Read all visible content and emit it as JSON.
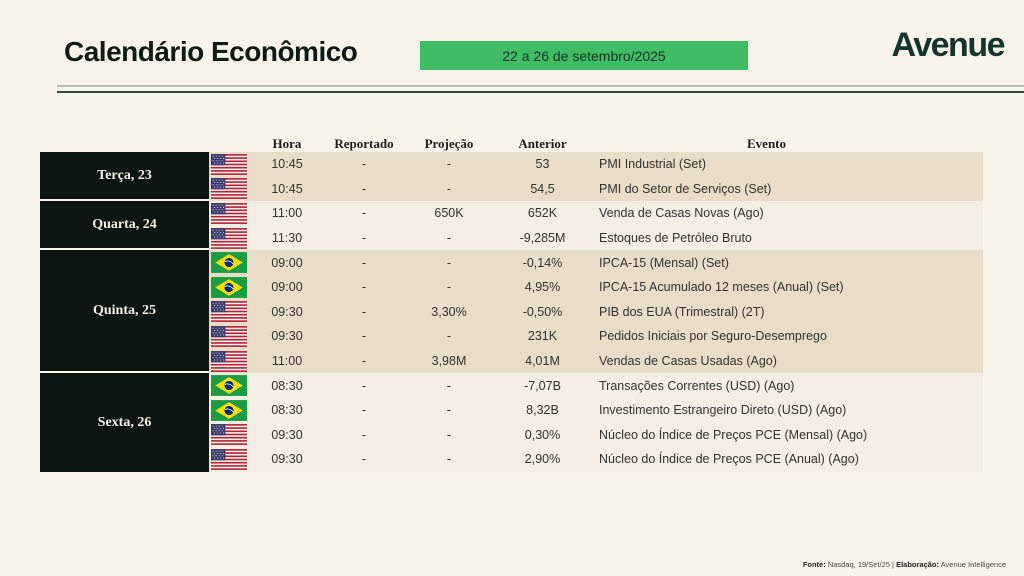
{
  "header": {
    "title": "Calendário Econômico",
    "date_badge": "22 a 26 de setembro/2025",
    "brand": "Avenue"
  },
  "table": {
    "columns": {
      "hora": "Hora",
      "reportado": "Reportado",
      "projecao": "Projeção",
      "anterior": "Anterior",
      "evento": "Evento"
    },
    "groups": [
      {
        "day": "Terça, 23",
        "shade": "dark",
        "rows": [
          {
            "country": "US",
            "hora": "10:45",
            "reportado": "-",
            "projecao": "-",
            "anterior": "53",
            "evento": "PMI Industrial (Set)"
          },
          {
            "country": "US",
            "hora": "10:45",
            "reportado": "-",
            "projecao": "-",
            "anterior": "54,5",
            "evento": "PMI do Setor de Serviços (Set)"
          }
        ]
      },
      {
        "day": "Quarta, 24",
        "shade": "light",
        "rows": [
          {
            "country": "US",
            "hora": "11:00",
            "reportado": "-",
            "projecao": "650K",
            "anterior": "652K",
            "evento": "Venda de Casas Novas (Ago)"
          },
          {
            "country": "US",
            "hora": "11:30",
            "reportado": "-",
            "projecao": "-",
            "anterior": "-9,285M",
            "evento": "Estoques de Petróleo Bruto"
          }
        ]
      },
      {
        "day": "Quinta, 25",
        "shade": "dark",
        "rows": [
          {
            "country": "BR",
            "hora": "09:00",
            "reportado": "-",
            "projecao": "-",
            "anterior": "-0,14%",
            "evento": "IPCA-15 (Mensal) (Set)"
          },
          {
            "country": "BR",
            "hora": "09:00",
            "reportado": "-",
            "projecao": "-",
            "anterior": "4,95%",
            "evento": "IPCA-15 Acumulado 12 meses (Anual) (Set)"
          },
          {
            "country": "US",
            "hora": "09:30",
            "reportado": "-",
            "projecao": "3,30%",
            "anterior": "-0,50%",
            "evento": "PIB dos EUA (Trimestral) (2T)"
          },
          {
            "country": "US",
            "hora": "09:30",
            "reportado": "-",
            "projecao": "-",
            "anterior": "231K",
            "evento": "Pedidos Iniciais por Seguro-Desemprego"
          },
          {
            "country": "US",
            "hora": "11:00",
            "reportado": "-",
            "projecao": "3,98M",
            "anterior": "4,01M",
            "evento": "Vendas de Casas Usadas (Ago)"
          }
        ]
      },
      {
        "day": "Sexta, 26",
        "shade": "light",
        "rows": [
          {
            "country": "BR",
            "hora": "08:30",
            "reportado": "-",
            "projecao": "-",
            "anterior": "-7,07B",
            "evento": "Transações Correntes (USD) (Ago)"
          },
          {
            "country": "BR",
            "hora": "08:30",
            "reportado": "-",
            "projecao": "-",
            "anterior": "8,32B",
            "evento": "Investimento Estrangeiro Direto (USD) (Ago)"
          },
          {
            "country": "US",
            "hora": "09:30",
            "reportado": "-",
            "projecao": "-",
            "anterior": "0,30%",
            "evento": "Núcleo do Índice de Preços PCE (Mensal) (Ago)"
          },
          {
            "country": "US",
            "hora": "09:30",
            "reportado": "-",
            "projecao": "-",
            "anterior": "2,90%",
            "evento": "Núcleo do Índice de Preços PCE (Anual) (Ago)"
          }
        ]
      }
    ]
  },
  "footer": {
    "fonte_label": "Fonte:",
    "fonte_value": " Nasdaq, 19/Set/25 | ",
    "elaboracao_label": "Elaboração:",
    "elaboracao_value": " Avenue Intelligence"
  },
  "colors": {
    "page_bg": "#f8f4ec",
    "accent_green": "#3fbc64",
    "brand_green": "#16352a",
    "day_block_bg": "#0c1511",
    "row_dark": "#e9dcc9",
    "row_light": "#f4eee4"
  }
}
